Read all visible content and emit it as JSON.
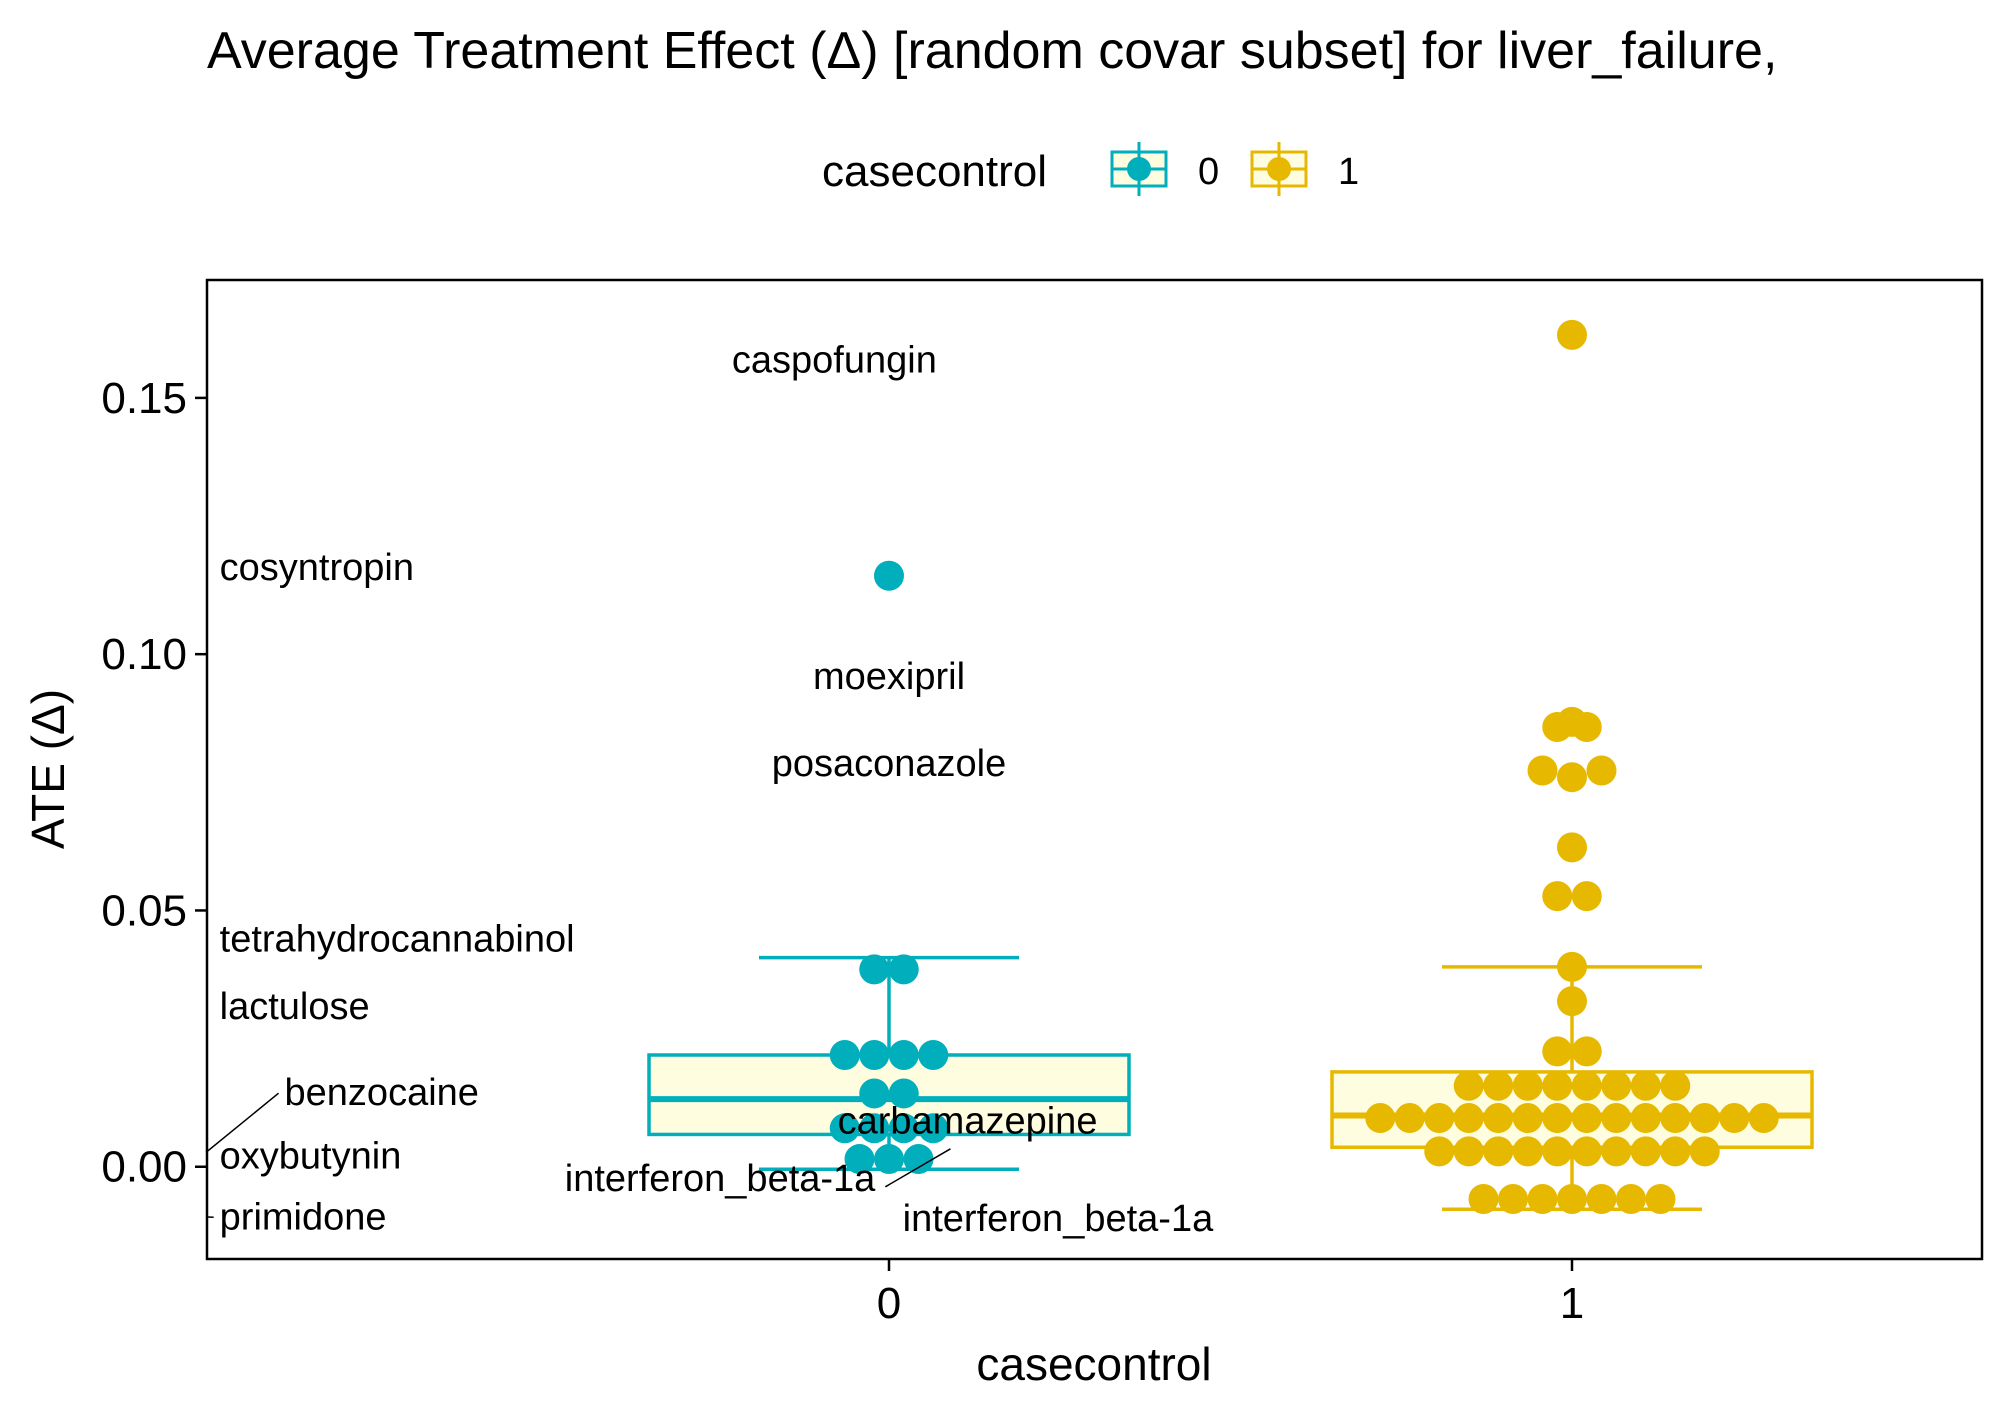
{
  "chart_data": {
    "type": "box+beeswarm",
    "title": "Average Treatment Effect (Δ)  [random covar subset] for liver_failure,",
    "xlabel": "casecontrol",
    "ylabel": "ATE (Δ)",
    "categories": [
      "0",
      "1"
    ],
    "ylim": [
      -0.018,
      0.173
    ],
    "yticks": [
      0.0,
      0.05,
      0.1,
      0.15
    ],
    "ytick_labels": [
      "0.00",
      "0.05",
      "0.10",
      "0.15"
    ],
    "grid": false,
    "legend": {
      "title": "casecontrol",
      "placement": "top",
      "entries": [
        {
          "name": "0",
          "color": "#00AFBB"
        },
        {
          "name": "1",
          "color": "#E7B800"
        }
      ]
    },
    "box_fill": "#FFFDE0",
    "series": [
      {
        "name": "0",
        "color": "#00AFBB",
        "box": {
          "whisker_low": -0.0005,
          "q1": 0.0063,
          "median": 0.0132,
          "q3": 0.0218,
          "whisker_high": 0.0408
        },
        "points": [
          {
            "y": 0.1153,
            "offset": 0
          },
          {
            "y": 0.0385,
            "offset": -1
          },
          {
            "y": 0.0385,
            "offset": 1
          },
          {
            "y": 0.0218,
            "offset": -3
          },
          {
            "y": 0.0218,
            "offset": -1
          },
          {
            "y": 0.0218,
            "offset": 1
          },
          {
            "y": 0.0218,
            "offset": 3
          },
          {
            "y": 0.0143,
            "offset": -1
          },
          {
            "y": 0.0143,
            "offset": 1
          },
          {
            "y": 0.0075,
            "offset": -3
          },
          {
            "y": 0.0075,
            "offset": -1
          },
          {
            "y": 0.0075,
            "offset": 1
          },
          {
            "y": 0.0075,
            "offset": 3
          },
          {
            "y": 0.0015,
            "offset": -2
          },
          {
            "y": 0.0015,
            "offset": 0
          },
          {
            "y": 0.0015,
            "offset": 2
          }
        ]
      },
      {
        "name": "1",
        "color": "#E7B800",
        "box": {
          "whisker_low": -0.0083,
          "q1": 0.0038,
          "median": 0.01,
          "q3": 0.0185,
          "whisker_high": 0.039
        },
        "points": [
          {
            "y": 0.1623,
            "offset": 0
          },
          {
            "y": 0.0858,
            "offset": -1
          },
          {
            "y": 0.0858,
            "offset": 1
          },
          {
            "y": 0.0868,
            "offset": 0
          },
          {
            "y": 0.0773,
            "offset": -2
          },
          {
            "y": 0.0773,
            "offset": 2
          },
          {
            "y": 0.076,
            "offset": 0
          },
          {
            "y": 0.0623,
            "offset": 0
          },
          {
            "y": 0.0528,
            "offset": -1
          },
          {
            "y": 0.0528,
            "offset": 1
          },
          {
            "y": 0.039,
            "offset": 0
          },
          {
            "y": 0.0323,
            "offset": 0
          },
          {
            "y": 0.0225,
            "offset": -1
          },
          {
            "y": 0.0225,
            "offset": 1
          },
          {
            "y": 0.0158,
            "offset": -7
          },
          {
            "y": 0.0158,
            "offset": -5
          },
          {
            "y": 0.0158,
            "offset": -3
          },
          {
            "y": 0.0158,
            "offset": -1
          },
          {
            "y": 0.0158,
            "offset": 1
          },
          {
            "y": 0.0158,
            "offset": 3
          },
          {
            "y": 0.0158,
            "offset": 5
          },
          {
            "y": 0.0158,
            "offset": 7
          },
          {
            "y": 0.0095,
            "offset": -13
          },
          {
            "y": 0.0095,
            "offset": -11
          },
          {
            "y": 0.0095,
            "offset": -9
          },
          {
            "y": 0.0095,
            "offset": -7
          },
          {
            "y": 0.0095,
            "offset": -5
          },
          {
            "y": 0.0095,
            "offset": -3
          },
          {
            "y": 0.0095,
            "offset": -1
          },
          {
            "y": 0.0095,
            "offset": 1
          },
          {
            "y": 0.0095,
            "offset": 3
          },
          {
            "y": 0.0095,
            "offset": 5
          },
          {
            "y": 0.0095,
            "offset": 7
          },
          {
            "y": 0.0095,
            "offset": 9
          },
          {
            "y": 0.0095,
            "offset": 11
          },
          {
            "y": 0.0095,
            "offset": 13
          },
          {
            "y": 0.003,
            "offset": -9
          },
          {
            "y": 0.003,
            "offset": -7
          },
          {
            "y": 0.003,
            "offset": -5
          },
          {
            "y": 0.003,
            "offset": -3
          },
          {
            "y": 0.003,
            "offset": -1
          },
          {
            "y": 0.003,
            "offset": 1
          },
          {
            "y": 0.003,
            "offset": 3
          },
          {
            "y": 0.003,
            "offset": 5
          },
          {
            "y": 0.003,
            "offset": 7
          },
          {
            "y": 0.003,
            "offset": 9
          },
          {
            "y": -0.0063,
            "offset": -6
          },
          {
            "y": -0.0063,
            "offset": -4
          },
          {
            "y": -0.0063,
            "offset": -2
          },
          {
            "y": -0.0063,
            "offset": 0
          },
          {
            "y": -0.0063,
            "offset": 2
          },
          {
            "y": -0.0063,
            "offset": 4
          },
          {
            "y": -0.0063,
            "offset": 6
          }
        ]
      }
    ],
    "annotations": [
      {
        "text": "caspofungin",
        "x": -0.08,
        "y": 0.155,
        "anchor": "middle"
      },
      {
        "text": "cosyntropin",
        "x": -0.98,
        "y": 0.1145,
        "anchor": "start"
      },
      {
        "text": "moexipril",
        "x": 0.0,
        "y": 0.0932,
        "anchor": "middle"
      },
      {
        "text": "posaconazole",
        "x": 0.0,
        "y": 0.0762,
        "anchor": "middle"
      },
      {
        "text": "tetrahydrocannabinol",
        "x": -0.98,
        "y": 0.042,
        "anchor": "start"
      },
      {
        "text": "lactulose",
        "x": -0.98,
        "y": 0.0288,
        "anchor": "start"
      },
      {
        "text": "benzocaine",
        "x": -0.885,
        "y": 0.012,
        "anchor": "start",
        "line_to_x": -1.0,
        "line_to_y": 0.0028
      },
      {
        "text": "oxybutynin",
        "x": -0.98,
        "y": -0.0003,
        "anchor": "start"
      },
      {
        "text": "primidone",
        "x": -0.98,
        "y": -0.0122,
        "anchor": "start",
        "line_to_x": -0.997,
        "line_to_y": -0.0098
      },
      {
        "text": "carbamazepine",
        "x": 0.115,
        "y": 0.0065,
        "anchor": "middle"
      },
      {
        "text": "interferon_beta-1a",
        "x": -0.02,
        "y": -0.0047,
        "anchor": "end",
        "line_to_x": 0.09,
        "line_to_y": 0.0035
      },
      {
        "text": "interferon_beta-1a",
        "x": 0.02,
        "y": -0.0125,
        "anchor": "start"
      }
    ]
  }
}
